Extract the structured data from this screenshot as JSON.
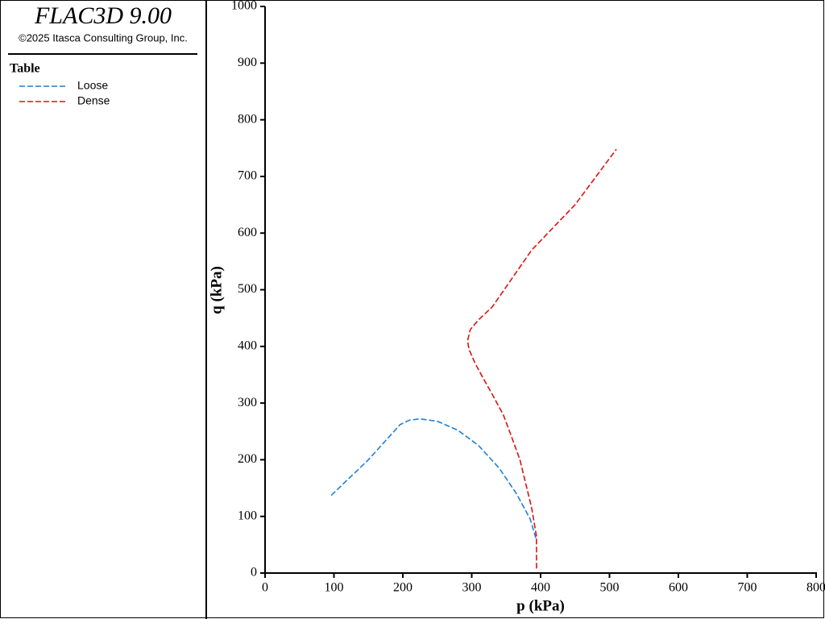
{
  "chart_data": {
    "type": "line",
    "title": "FLAC3D 9.00",
    "subtitle": "©2025 Itasca Consulting Group, Inc.",
    "legend_title": "Table",
    "x_label": "p (kPa)",
    "y_label": "q (kPa)",
    "xlim": [
      0,
      800
    ],
    "xticks": [
      0,
      100,
      200,
      300,
      400,
      500,
      600,
      700,
      800
    ],
    "ylim": [
      0,
      1000
    ],
    "yticks": [
      0,
      100,
      200,
      300,
      400,
      500,
      600,
      700,
      800,
      900,
      1000
    ],
    "series": [
      {
        "name": "Loose",
        "color": "#1f7fd8",
        "x": [
          96,
          150,
          196,
          210,
          225,
          250,
          280,
          310,
          340,
          365,
          385,
          393
        ],
        "values": [
          137,
          200,
          262,
          270,
          272,
          268,
          252,
          225,
          185,
          140,
          95,
          62
        ]
      },
      {
        "name": "Dense",
        "color": "#e01010",
        "x": [
          394,
          394,
          387,
          378,
          370,
          358,
          346,
          330,
          317,
          305,
          296,
          294,
          298,
          310,
          330,
          387,
          450,
          510
        ],
        "values": [
          8,
          65,
          115,
          160,
          200,
          240,
          279,
          315,
          343,
          370,
          395,
          410,
          430,
          447,
          470,
          570,
          650,
          748
        ]
      }
    ]
  }
}
